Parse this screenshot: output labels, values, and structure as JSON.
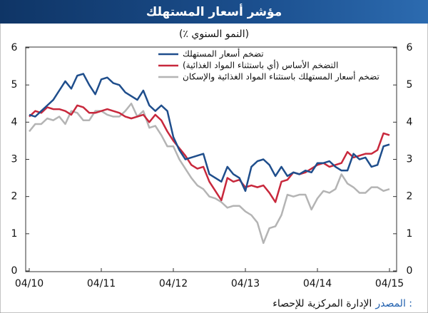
{
  "chart_data": {
    "type": "line",
    "title": "مؤشر أسعار المستهلك",
    "subtitle": "(٪ النمو السنوي)",
    "source_label": "المصدر :",
    "source": "الإدارة المركزية للإحصاء",
    "x": [
      "04/10",
      "05/10",
      "06/10",
      "07/10",
      "08/10",
      "09/10",
      "10/10",
      "11/10",
      "12/10",
      "01/11",
      "02/11",
      "03/11",
      "04/11",
      "05/11",
      "06/11",
      "07/11",
      "08/11",
      "09/11",
      "10/11",
      "11/11",
      "12/11",
      "01/12",
      "02/12",
      "03/12",
      "04/12",
      "05/12",
      "06/12",
      "07/12",
      "08/12",
      "09/12",
      "10/12",
      "11/12",
      "12/12",
      "01/13",
      "02/13",
      "03/13",
      "04/13",
      "05/13",
      "06/13",
      "07/13",
      "08/13",
      "09/13",
      "10/13",
      "11/13",
      "12/13",
      "01/14",
      "02/14",
      "03/14",
      "04/14",
      "05/14",
      "06/14",
      "07/14",
      "08/14",
      "09/14",
      "10/14",
      "11/14",
      "12/14",
      "01/15",
      "02/15",
      "03/15",
      "04/15"
    ],
    "xticks": [
      "04/10",
      "04/11",
      "04/12",
      "04/13",
      "04/14",
      "04/15"
    ],
    "ylim": [
      0,
      6
    ],
    "yticks": [
      0,
      1,
      2,
      3,
      4,
      5,
      6
    ],
    "grid": false,
    "series": [
      {
        "name": "تضخم أسعار المستهلك",
        "color": "#1f4e8c",
        "values": [
          4.2,
          4.15,
          4.3,
          4.45,
          4.6,
          4.85,
          5.1,
          4.9,
          5.25,
          5.3,
          5.0,
          4.75,
          5.15,
          5.2,
          5.05,
          5.0,
          4.8,
          4.7,
          4.6,
          4.85,
          4.45,
          4.3,
          4.45,
          4.3,
          3.6,
          3.25,
          3.0,
          3.05,
          3.1,
          3.15,
          2.6,
          2.5,
          2.4,
          2.8,
          2.6,
          2.5,
          2.15,
          2.8,
          2.95,
          3.0,
          2.85,
          2.55,
          2.8,
          2.55,
          2.65,
          2.6,
          2.7,
          2.65,
          2.9,
          2.9,
          2.95,
          2.8,
          2.7,
          2.7,
          3.15,
          3.0,
          3.05,
          2.8,
          2.85,
          3.35,
          3.4
        ]
      },
      {
        "name": "التضخم الأساس (أي باستثناء المواد الغذائية)",
        "color": "#c8283c",
        "values": [
          4.15,
          4.3,
          4.25,
          4.4,
          4.35,
          4.35,
          4.3,
          4.2,
          4.45,
          4.4,
          4.25,
          4.25,
          4.3,
          4.35,
          4.3,
          4.25,
          4.15,
          4.1,
          4.15,
          4.2,
          4.0,
          4.2,
          4.05,
          3.75,
          3.5,
          3.3,
          3.1,
          2.85,
          2.75,
          2.8,
          2.4,
          2.15,
          1.9,
          2.5,
          2.4,
          2.45,
          2.25,
          2.3,
          2.25,
          2.3,
          2.1,
          1.85,
          2.4,
          2.45,
          2.65,
          2.6,
          2.65,
          2.75,
          2.85,
          2.9,
          2.8,
          2.85,
          2.9,
          3.2,
          3.05,
          3.1,
          3.15,
          3.15,
          3.25,
          3.7,
          3.65
        ]
      },
      {
        "name": "تضخم أسعار المستهلك باستثناء المواد الغذائية والإسكان",
        "color": "#b4b4b4",
        "values": [
          3.75,
          3.95,
          3.95,
          4.1,
          4.05,
          4.15,
          3.95,
          4.3,
          4.25,
          4.05,
          4.05,
          4.3,
          4.3,
          4.2,
          4.15,
          4.15,
          4.3,
          4.5,
          4.15,
          4.3,
          3.85,
          3.9,
          3.65,
          3.35,
          3.35,
          3.0,
          2.75,
          2.5,
          2.3,
          2.2,
          2.0,
          1.95,
          1.85,
          1.7,
          1.75,
          1.75,
          1.6,
          1.5,
          1.3,
          0.75,
          1.15,
          1.2,
          1.5,
          2.05,
          2.0,
          2.05,
          2.05,
          1.65,
          1.95,
          2.15,
          2.1,
          2.2,
          2.6,
          2.35,
          2.25,
          2.1,
          2.1,
          2.25,
          2.25,
          2.15,
          2.2
        ]
      }
    ]
  }
}
